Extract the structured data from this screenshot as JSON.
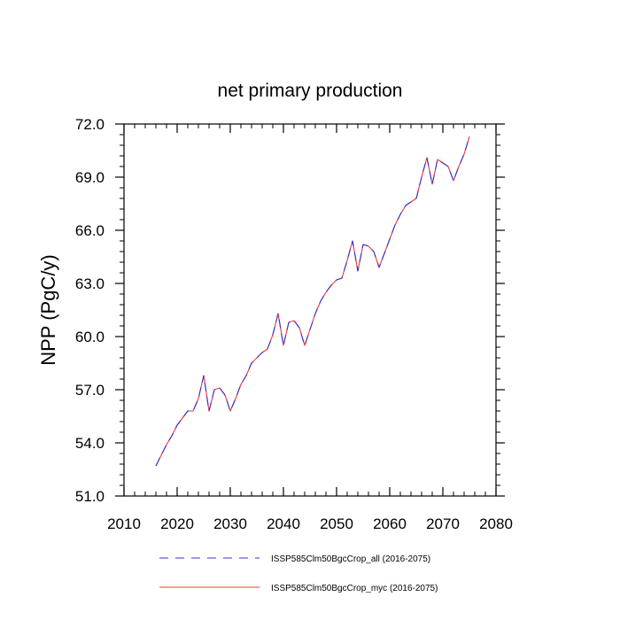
{
  "chart_data": {
    "type": "line",
    "title": "net primary production",
    "xlabel": "",
    "ylabel": "NPP  (PgC/y)",
    "xlim": [
      2010,
      2080
    ],
    "ylim": [
      51.0,
      72.0
    ],
    "xticks": [
      "2010",
      "2020",
      "2030",
      "2040",
      "2050",
      "2060",
      "2070",
      "2080"
    ],
    "yticks": [
      "51.0",
      "54.0",
      "57.0",
      "60.0",
      "63.0",
      "66.0",
      "69.0",
      "72.0"
    ],
    "grid": false,
    "legend_position": "bottom",
    "x": [
      2016,
      2017,
      2018,
      2019,
      2020,
      2021,
      2022,
      2023,
      2024,
      2025,
      2026,
      2027,
      2028,
      2029,
      2030,
      2031,
      2032,
      2033,
      2034,
      2035,
      2036,
      2037,
      2038,
      2039,
      2040,
      2041,
      2042,
      2043,
      2044,
      2045,
      2046,
      2047,
      2048,
      2049,
      2050,
      2051,
      2052,
      2053,
      2054,
      2055,
      2056,
      2057,
      2058,
      2059,
      2060,
      2061,
      2062,
      2063,
      2064,
      2065,
      2066,
      2067,
      2068,
      2069,
      2070,
      2071,
      2072,
      2073,
      2074,
      2075
    ],
    "series": [
      {
        "name": "ISSP585Clm50BgcCrop_all (2016-2075)",
        "color": "#3333cc",
        "style": "dashed",
        "values": [
          52.7,
          53.3,
          53.9,
          54.4,
          55.0,
          55.4,
          55.8,
          55.8,
          56.5,
          57.8,
          55.8,
          57.0,
          57.1,
          56.7,
          55.8,
          56.5,
          57.3,
          57.8,
          58.5,
          58.8,
          59.1,
          59.3,
          60.1,
          61.3,
          59.5,
          60.8,
          60.9,
          60.5,
          59.5,
          60.4,
          61.3,
          62.0,
          62.5,
          62.9,
          63.2,
          63.3,
          64.3,
          65.4,
          63.7,
          65.2,
          65.1,
          64.8,
          63.9,
          64.7,
          65.5,
          66.3,
          66.9,
          67.4,
          67.6,
          67.8,
          69.0,
          70.1,
          68.6,
          70.0,
          69.8,
          69.6,
          68.8,
          69.6,
          70.3,
          71.3
        ]
      },
      {
        "name": "ISSP585Clm50BgcCrop_myc (2016-2075)",
        "color": "#ff3333",
        "style": "solid",
        "values": [
          52.7,
          53.3,
          53.9,
          54.4,
          55.0,
          55.4,
          55.8,
          55.8,
          56.5,
          57.8,
          55.8,
          57.0,
          57.1,
          56.7,
          55.8,
          56.5,
          57.3,
          57.8,
          58.5,
          58.8,
          59.1,
          59.3,
          60.1,
          61.3,
          59.5,
          60.8,
          60.9,
          60.5,
          59.5,
          60.4,
          61.3,
          62.0,
          62.5,
          62.9,
          63.2,
          63.3,
          64.3,
          65.4,
          63.7,
          65.2,
          65.1,
          64.8,
          63.9,
          64.7,
          65.5,
          66.3,
          66.9,
          67.4,
          67.6,
          67.8,
          69.0,
          70.1,
          68.6,
          70.0,
          69.8,
          69.6,
          68.8,
          69.6,
          70.3,
          71.3
        ]
      }
    ]
  }
}
